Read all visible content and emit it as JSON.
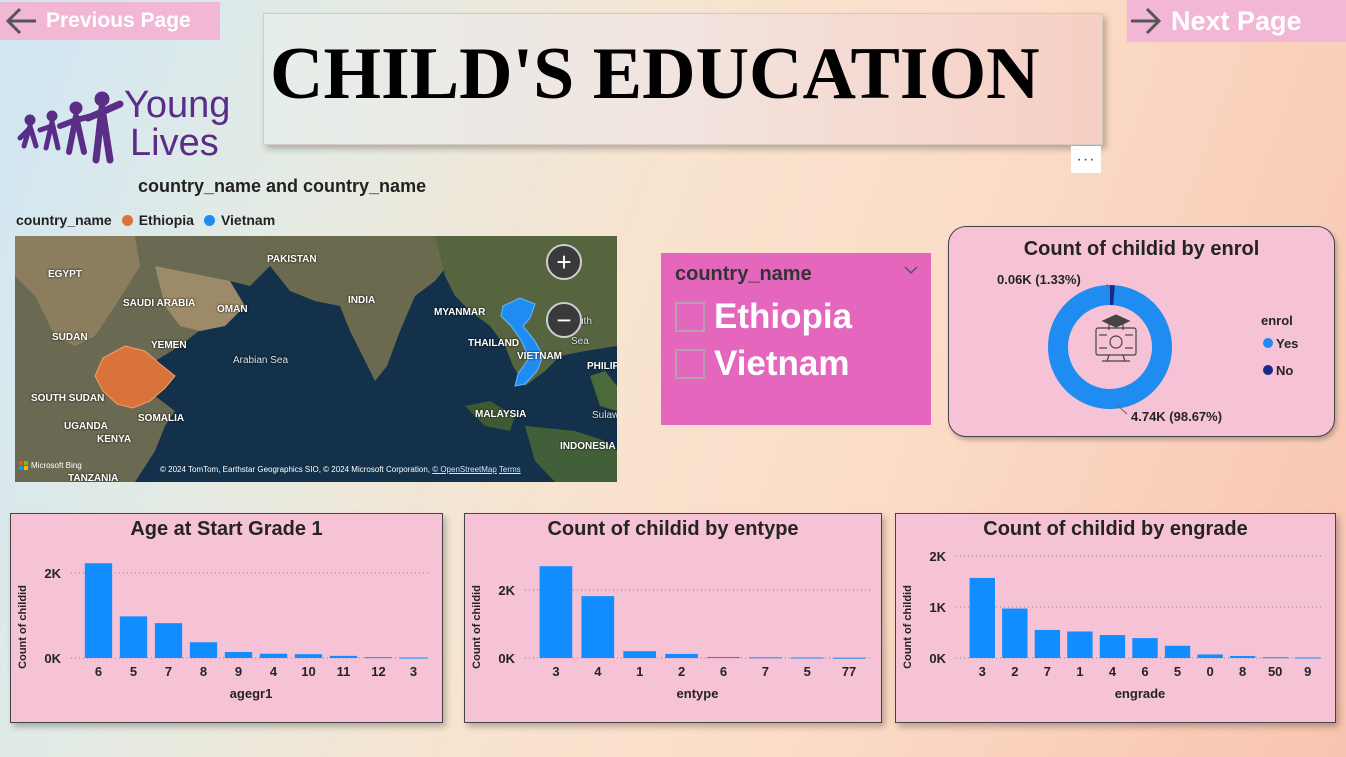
{
  "nav": {
    "prev_label": "Previous Page",
    "next_label": "Next Page"
  },
  "header": {
    "title": "CHILD'S EDUCATION",
    "more_options": "···"
  },
  "logo": {
    "line1": "Young",
    "line2": "Lives",
    "color": "#5a2d86"
  },
  "map_visual": {
    "title": "country_name and country_name",
    "legend_title": "country_name",
    "legend": [
      {
        "name": "Ethiopia",
        "color": "#d9733a"
      },
      {
        "name": "Vietnam",
        "color": "#1e8cf0"
      }
    ],
    "labels": {
      "egypt": "EGYPT",
      "pakistan": "PAKISTAN",
      "saudi": "SAUDI ARABIA",
      "oman": "OMAN",
      "india": "INDIA",
      "myanmar": "MYANMAR",
      "sudan": "SUDAN",
      "yemen": "YEMEN",
      "arabian_sea": "Arabian Sea",
      "thailand": "THAILAND",
      "vietnam": "VIETNAM",
      "south_sudan": "SOUTH SUDAN",
      "somalia": "SOMALIA",
      "uganda": "UGANDA",
      "kenya": "KENYA",
      "tanzania": "TANZANIA",
      "malaysia": "MALAYSIA",
      "indonesia": "INDONESIA",
      "philippines": "PHILIP",
      "south_china_sea_1": "uth",
      "south_china_sea_2": "Sea",
      "sulawesi": "Sulaw"
    },
    "zoom_in": "+",
    "zoom_out": "−",
    "bing": "Microsoft Bing",
    "attribution": "© 2024 TomTom, Earthstar Geographics SIO, © 2024 Microsoft Corporation, ",
    "osm_link": "© OpenStreetMap",
    "terms_link": "Terms"
  },
  "slicer": {
    "header": "country_name",
    "items": [
      "Ethiopia",
      "Vietnam"
    ]
  },
  "donut": {
    "title": "Count of childid by enrol",
    "legend_title": "enrol",
    "colors": {
      "Yes": "#1e8cf0",
      "No": "#1a2a8c"
    },
    "chart_data": {
      "type": "pie",
      "title": "Count of childid by enrol",
      "slices": [
        {
          "label": "Yes",
          "value": 4.74,
          "unit": "K",
          "percent": 98.67,
          "display": "4.74K (98.67%)"
        },
        {
          "label": "No",
          "value": 0.06,
          "unit": "K",
          "percent": 1.33,
          "display": "0.06K (1.33%)"
        }
      ],
      "legend_title": "enrol"
    }
  },
  "charts": [
    {
      "type": "bar",
      "title": "Age at Start Grade 1",
      "xlabel": "agegr1",
      "ylabel": "Count of childid",
      "categories": [
        "6",
        "5",
        "7",
        "8",
        "9",
        "4",
        "10",
        "11",
        "12",
        "3"
      ],
      "values": [
        2230,
        980,
        820,
        370,
        140,
        100,
        90,
        50,
        20,
        10
      ],
      "yticks": [
        0,
        2000
      ],
      "ytick_labels": [
        "0K",
        "2K"
      ],
      "ylim": [
        0,
        2400
      ],
      "grid": true
    },
    {
      "type": "bar",
      "title": "Count of childid by entype",
      "xlabel": "entype",
      "ylabel": "Count of childid",
      "categories": [
        "3",
        "4",
        "1",
        "2",
        "6",
        "7",
        "5",
        "77"
      ],
      "values": [
        2700,
        1820,
        200,
        120,
        30,
        20,
        15,
        10
      ],
      "yticks": [
        0,
        2000
      ],
      "ytick_labels": [
        "0K",
        "2K"
      ],
      "ylim": [
        0,
        3000
      ],
      "grid": true
    },
    {
      "type": "bar",
      "title": "Count of childid by engrade",
      "xlabel": "engrade",
      "ylabel": "Count of childid",
      "categories": [
        "3",
        "2",
        "7",
        "1",
        "4",
        "6",
        "5",
        "0",
        "8",
        "50",
        "9"
      ],
      "values": [
        1570,
        970,
        550,
        520,
        450,
        390,
        240,
        70,
        40,
        15,
        10
      ],
      "yticks": [
        0,
        1000,
        2000
      ],
      "ytick_labels": [
        "0K",
        "1K",
        "2K"
      ],
      "ylim": [
        0,
        2000
      ],
      "grid": true
    }
  ],
  "chart_data": [
    {
      "type": "bar",
      "title": "Age at Start Grade 1",
      "xlabel": "agegr1",
      "ylabel": "Count of childid",
      "categories": [
        "6",
        "5",
        "7",
        "8",
        "9",
        "4",
        "10",
        "11",
        "12",
        "3"
      ],
      "values": [
        2230,
        980,
        820,
        370,
        140,
        100,
        90,
        50,
        20,
        10
      ],
      "ylim": [
        0,
        2400
      ],
      "grid": true
    },
    {
      "type": "bar",
      "title": "Count of childid by entype",
      "xlabel": "entype",
      "ylabel": "Count of childid",
      "categories": [
        "3",
        "4",
        "1",
        "2",
        "6",
        "7",
        "5",
        "77"
      ],
      "values": [
        2700,
        1820,
        200,
        120,
        30,
        20,
        15,
        10
      ],
      "ylim": [
        0,
        3000
      ],
      "grid": true
    },
    {
      "type": "bar",
      "title": "Count of childid by engrade",
      "xlabel": "engrade",
      "ylabel": "Count of childid",
      "categories": [
        "3",
        "2",
        "7",
        "1",
        "4",
        "6",
        "5",
        "0",
        "8",
        "50",
        "9"
      ],
      "values": [
        1570,
        970,
        550,
        520,
        450,
        390,
        240,
        70,
        40,
        15,
        10
      ],
      "ylim": [
        0,
        2000
      ],
      "grid": true
    },
    {
      "type": "pie",
      "title": "Count of childid by enrol",
      "slices": [
        {
          "label": "Yes",
          "value": 4740,
          "percent": 98.67
        },
        {
          "label": "No",
          "value": 60,
          "percent": 1.33
        }
      ]
    }
  ],
  "bar_color": "#118dff"
}
